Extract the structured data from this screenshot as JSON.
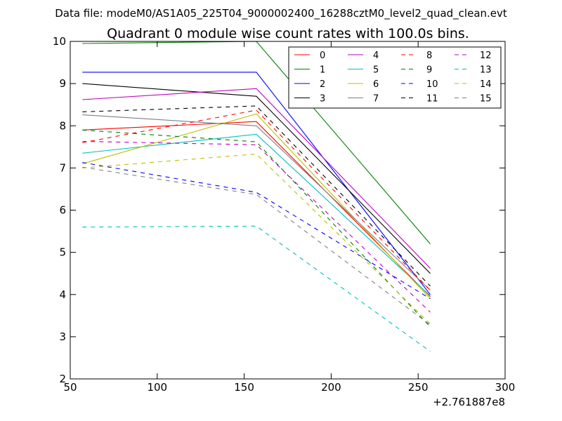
{
  "suptitle": "Data file: modeM0/AS1A05_225T04_9000002400_16288cztM0_level2_quad_clean.evt",
  "chart_data": {
    "type": "line",
    "title": "Quadrant 0 module wise count rates with 100.0s bins.",
    "xlabel": "",
    "ylabel": "",
    "x_offset_label": "+2.761887e8",
    "xlim": [
      50,
      300
    ],
    "ylim": [
      2,
      10
    ],
    "xticks": [
      50,
      100,
      150,
      200,
      250,
      300
    ],
    "yticks": [
      2,
      3,
      4,
      5,
      6,
      7,
      8,
      9,
      10
    ],
    "x": [
      57,
      157,
      257
    ],
    "legend_position": "top-right",
    "legend_columns": 4,
    "series": [
      {
        "name": "0",
        "color": "#ff0000",
        "dash": "solid",
        "values": [
          7.9,
          8.1,
          3.95
        ]
      },
      {
        "name": "1",
        "color": "#008000",
        "dash": "solid",
        "values": [
          9.95,
          10.0,
          5.2
        ]
      },
      {
        "name": "2",
        "color": "#0000ff",
        "dash": "solid",
        "values": [
          9.27,
          9.27,
          4.0
        ]
      },
      {
        "name": "3",
        "color": "#000000",
        "dash": "solid",
        "values": [
          9.0,
          8.7,
          4.5
        ]
      },
      {
        "name": "4",
        "color": "#bf00bf",
        "dash": "solid",
        "values": [
          8.62,
          8.88,
          4.62
        ]
      },
      {
        "name": "5",
        "color": "#00bfbf",
        "dash": "solid",
        "values": [
          7.35,
          7.8,
          3.97
        ]
      },
      {
        "name": "6",
        "color": "#bfbf00",
        "dash": "solid",
        "values": [
          7.1,
          8.28,
          3.9
        ]
      },
      {
        "name": "7",
        "color": "#808080",
        "dash": "solid",
        "values": [
          8.26,
          8.0,
          4.1
        ]
      },
      {
        "name": "8",
        "color": "#ff0000",
        "dash": "dashed",
        "values": [
          7.6,
          8.37,
          4.1
        ]
      },
      {
        "name": "9",
        "color": "#008000",
        "dash": "dashed",
        "values": [
          7.9,
          7.62,
          3.23
        ]
      },
      {
        "name": "10",
        "color": "#0000ff",
        "dash": "dashed",
        "values": [
          7.13,
          6.42,
          3.9
        ]
      },
      {
        "name": "11",
        "color": "#000000",
        "dash": "dashed",
        "values": [
          8.33,
          8.47,
          4.2
        ]
      },
      {
        "name": "12",
        "color": "#bf00bf",
        "dash": "dashed",
        "values": [
          7.63,
          7.55,
          3.58
        ]
      },
      {
        "name": "13",
        "color": "#00bfbf",
        "dash": "dashed",
        "values": [
          5.6,
          5.62,
          2.65
        ]
      },
      {
        "name": "14",
        "color": "#bfbf00",
        "dash": "dashed",
        "values": [
          7.0,
          7.33,
          3.3
        ]
      },
      {
        "name": "15",
        "color": "#808080",
        "dash": "dashed",
        "values": [
          7.02,
          6.37,
          3.28
        ]
      }
    ]
  }
}
